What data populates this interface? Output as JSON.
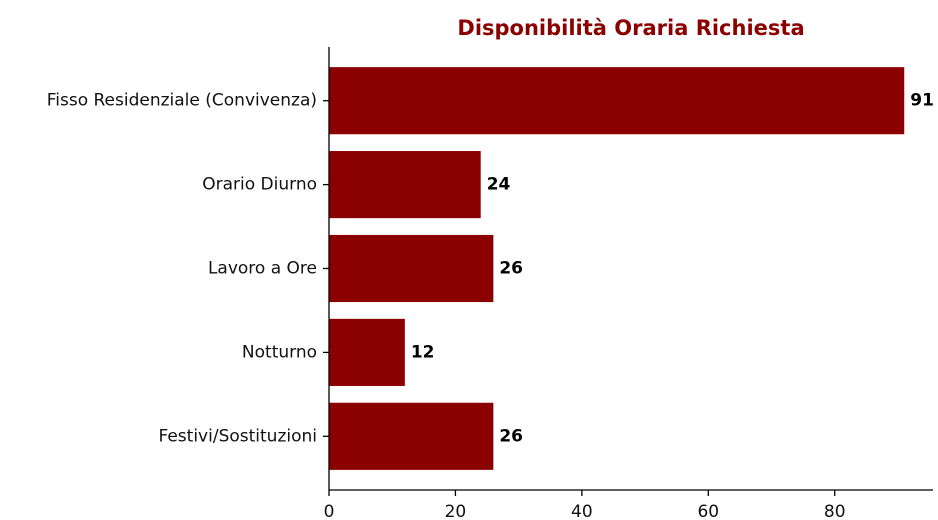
{
  "chart_data": {
    "type": "bar",
    "orientation": "horizontal",
    "title": "Disponibilità Oraria Richiesta",
    "categories": [
      "Fisso Residenziale (Convivenza)",
      "Orario Diurno",
      "Lavoro a Ore",
      "Notturno",
      "Festivi/Sostituzioni"
    ],
    "values": [
      91,
      24,
      26,
      12,
      26
    ],
    "color": "#8b0000",
    "xlim": [
      0,
      95.55
    ],
    "xticks": [
      0,
      20,
      40,
      60,
      80
    ],
    "grid": false
  }
}
